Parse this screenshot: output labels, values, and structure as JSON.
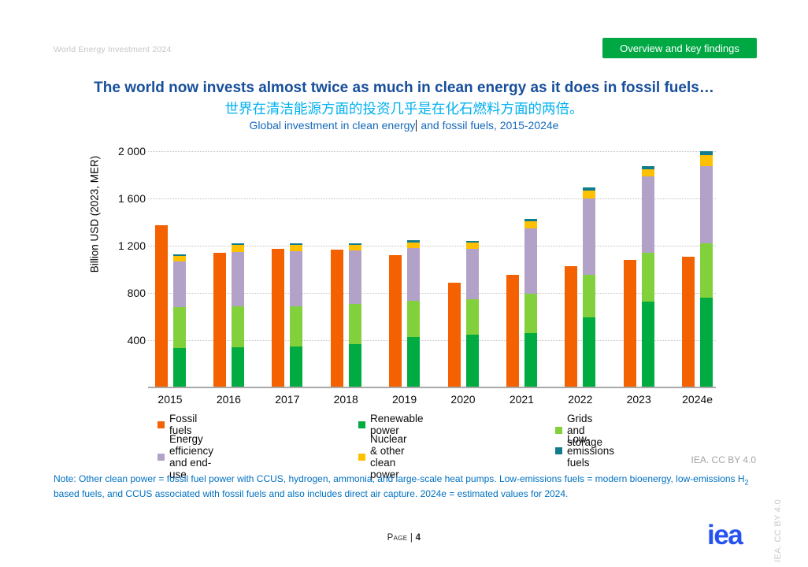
{
  "header": {
    "doc_title": "World Energy Investment 2024",
    "section_button_label": "Overview and key findings"
  },
  "titles": {
    "main": "The world now invests almost twice as much in clean energy as it does in fossil fuels…",
    "chinese": "世界在清洁能源方面的投资几乎是在化石燃料方面的两倍。",
    "subtitle_left": "Global investment in clean energy",
    "subtitle_right": " and fossil fuels, 2015-2024e"
  },
  "chart_data": {
    "type": "bar",
    "subtype": "grouped-stacked-columns",
    "title": "Global investment in clean energy and fossil fuels, 2015-2024e",
    "ylabel": "Billion USD (2023, MER)",
    "ylim": [
      0,
      2000
    ],
    "yticks": [
      "2 000",
      "1 600",
      "1 200",
      "800",
      "400"
    ],
    "ytick_values": [
      2000,
      1600,
      1200,
      800,
      400
    ],
    "grid": "horizontal dotted",
    "legend_position": "bottom",
    "categories": [
      "2015",
      "2016",
      "2017",
      "2018",
      "2019",
      "2020",
      "2021",
      "2022",
      "2023",
      "2024e"
    ],
    "series": [
      {
        "name": "Fossil fuels",
        "color": "#f36100",
        "stack": "fossil",
        "values": [
          1375,
          1140,
          1175,
          1170,
          1120,
          885,
          955,
          1030,
          1080,
          1110
        ]
      },
      {
        "name": "Renewable power",
        "color": "#00ac41",
        "stack": "clean",
        "values": [
          335,
          340,
          345,
          370,
          425,
          445,
          460,
          595,
          730,
          760
        ]
      },
      {
        "name": "Grids and storage",
        "color": "#82d13c",
        "stack": "clean",
        "values": [
          345,
          350,
          340,
          340,
          310,
          305,
          335,
          360,
          410,
          460
        ]
      },
      {
        "name": "Energy efficiency and end-use",
        "color": "#b3a2c7",
        "stack": "clean",
        "values": [
          390,
          460,
          470,
          450,
          445,
          425,
          555,
          645,
          645,
          655
        ]
      },
      {
        "name": "Nuclear & other clean power",
        "color": "#ffc000",
        "stack": "clean",
        "values": [
          45,
          55,
          50,
          45,
          50,
          50,
          58,
          68,
          65,
          95
        ]
      },
      {
        "name": "Low-emissions fuels",
        "color": "#117c8c",
        "stack": "clean",
        "values": [
          10,
          12,
          12,
          12,
          15,
          18,
          18,
          27,
          24,
          31
        ]
      }
    ]
  },
  "attribution": "IEA. CC BY 4.0",
  "note": {
    "part1": "Note: Other clean power = fossil fuel power with CCUS, hydrogen, ammonia, and large-scale heat pumps. Low-emissions fuels = modern bioenergy, low-emissions ",
    "h2_base": "H",
    "h2_sub": "2",
    "part2": " based fuels, and CCUS associated with fossil fuels and also includes direct air capture. 2024e = estimated values for 2024."
  },
  "footer": {
    "page_label": "Page | ",
    "page_number": "4",
    "logo_text": "iea",
    "side_attribution": "IEA. CC BY 4.0"
  },
  "colors": {
    "button_green": "#00a844",
    "title_blue": "#184f9b",
    "chinese_cyan": "#00b0f0",
    "subtitle_blue": "#1568b8",
    "note_blue": "#0070c0",
    "logo_blue": "#2553f0",
    "axis_gray": "#a8a8a8",
    "muted_gray": "#a6a6a6"
  }
}
